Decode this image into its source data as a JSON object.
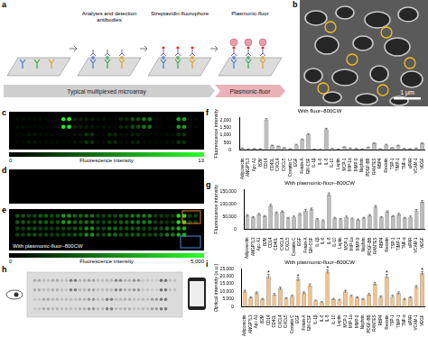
{
  "panel_labels": [
    "a",
    "b",
    "c",
    "d",
    "e",
    "f",
    "g",
    "h",
    "i"
  ],
  "schematic": {
    "steps": [
      "Analytes and detection antibodies",
      "Streptavidin-fluorophore",
      "Plasmonic-fluor"
    ],
    "stages": [
      "Typical multiplexed microarray",
      "Plasmonic-fluor"
    ]
  },
  "sem": {
    "scale_bar": "1 μm"
  },
  "array_c": {
    "colorbar": {
      "label": "Fluorescence intensity",
      "range": [
        0,
        13
      ],
      "ticks": [
        0,
        13
      ]
    }
  },
  "array_e": {
    "text": "With plasmonic-fluor–800CW",
    "colorbar": {
      "label": "Fluorescence intensity",
      "range": [
        0,
        5000
      ],
      "ticks": [
        0,
        {
          "value": 5000,
          "label": "5,000"
        }
      ]
    }
  },
  "chart_data": [
    {
      "type": "bar",
      "title": "With fluor–800CW",
      "y_label": "Fluorescence intensity",
      "categories": [
        "Adiponectin",
        "ANGPTL3",
        "Apo A1",
        "B2M",
        "CD14",
        "CD40L",
        "CXCL4",
        "CXCL5",
        "Cystatin C",
        "EGF",
        "Fetuin-A",
        "GM-CSF",
        "IL-1β",
        "IL-6",
        "IL-8",
        "IL-10",
        "Leptin",
        "MCP-1",
        "MIP-1α",
        "MMP-9",
        "Nephrin",
        "PDGF-BB",
        "RANTES",
        "RBP4",
        "Resistin",
        "TSP-1",
        "TIMP-1",
        "TNF-α",
        "uPAR",
        "VCAM-1",
        "VEGF"
      ],
      "values": [
        120,
        60,
        90,
        80,
        2050,
        300,
        250,
        150,
        80,
        350,
        700,
        1050,
        60,
        40,
        1400,
        100,
        60,
        200,
        120,
        90,
        70,
        180,
        450,
        80,
        350,
        150,
        300,
        100,
        80,
        120,
        450
      ],
      "errors": [
        15,
        10,
        12,
        10,
        60,
        25,
        20,
        15,
        10,
        30,
        40,
        50,
        10,
        8,
        60,
        12,
        10,
        20,
        15,
        12,
        10,
        18,
        30,
        10,
        30,
        15,
        25,
        12,
        10,
        15,
        30
      ],
      "color": "#bdbdbd",
      "ylim": [
        0,
        2200
      ],
      "yticks": [
        0,
        500,
        {
          "value": 1000,
          "label": "1,000"
        },
        {
          "value": 1500,
          "label": "1,500"
        },
        {
          "value": 2000,
          "label": "2,000"
        }
      ],
      "grid": false
    },
    {
      "type": "bar",
      "title": "With plasmonic-fluor–800CW",
      "y_label": "Fluorescence intensity",
      "categories": [
        "Adiponectin",
        "ANGPTL3",
        "Apo A1",
        "B2M",
        "CD14",
        "CD40L",
        "CXCL4",
        "CXCL5",
        "Cystatin C",
        "EGF",
        "Fetuin-A",
        "GM-CSF",
        "IL-1β",
        "IL-6",
        "IL-8",
        "IL-10",
        "Leptin",
        "MCP-1",
        "MIP-1α",
        "MMP-9",
        "Nephrin",
        "PDGF-BB",
        "RANTES",
        "RBP4",
        "Resistin",
        "TSP-1",
        "TIMP-1",
        "TNF-α",
        "uPAR",
        "VCAM-1",
        "VEGF"
      ],
      "values": [
        55000,
        48000,
        60000,
        52000,
        95000,
        65000,
        70000,
        45000,
        50000,
        60000,
        75000,
        80000,
        40000,
        35000,
        140000,
        45000,
        40000,
        50000,
        42000,
        38000,
        45000,
        55000,
        90000,
        48000,
        70000,
        52000,
        60000,
        45000,
        50000,
        75000,
        110000
      ],
      "errors": [
        4000,
        3000,
        4000,
        3000,
        5000,
        4000,
        4000,
        3000,
        3000,
        4000,
        5000,
        5000,
        3000,
        3000,
        6000,
        3000,
        3000,
        3000,
        3000,
        3000,
        3000,
        4000,
        5000,
        3000,
        4000,
        3000,
        4000,
        3000,
        3000,
        4000,
        5000
      ],
      "color": "#bdbdbd",
      "ylim": [
        0,
        160000
      ],
      "yticks": [
        0,
        {
          "value": 50000,
          "label": "50,000"
        },
        {
          "value": 100000,
          "label": "100,000"
        },
        {
          "value": 150000,
          "label": "150,000"
        }
      ],
      "grid": false
    },
    {
      "type": "bar",
      "title": "With plasmonic-fluor–800CW",
      "y_label": "Optical intensity (a.u.)",
      "categories": [
        "Adiponectin",
        "ANGPTL3",
        "Apo A1",
        "B2M",
        "CD14",
        "CD40L",
        "CXCL4",
        "CXCL5",
        "Cystatin C",
        "EGF",
        "Fetuin-A",
        "GM-CSF",
        "IL-1β",
        "IL-6",
        "IL-8",
        "IL-10",
        "Leptin",
        "MCP-1",
        "MIP-1α",
        "MMP-9",
        "Nephrin",
        "PDGF-BB",
        "RANTES",
        "RBP4",
        "Resistin",
        "TSP-1",
        "TIMP-1",
        "TNF-α",
        "uPAR",
        "VCAM-1",
        "VEGF"
      ],
      "values": [
        10000,
        6000,
        9000,
        5000,
        20000,
        8000,
        12000,
        5500,
        7000,
        18000,
        9000,
        14000,
        4000,
        3000,
        23000,
        5000,
        4500,
        10000,
        7000,
        6000,
        5000,
        8000,
        15000,
        6500,
        20000,
        7000,
        9000,
        5000,
        6000,
        13000,
        22000
      ],
      "errors": [
        800,
        600,
        800,
        500,
        1200,
        700,
        900,
        500,
        600,
        1100,
        800,
        1000,
        400,
        400,
        1200,
        500,
        400,
        800,
        600,
        500,
        500,
        700,
        1000,
        600,
        1200,
        600,
        800,
        500,
        500,
        900,
        1200
      ],
      "annotations": [
        {
          "category": "CD14",
          "text": "*"
        },
        {
          "category": "EGF",
          "text": "*"
        },
        {
          "category": "IL-8",
          "text": "*"
        },
        {
          "category": "Resistin",
          "text": "*"
        },
        {
          "category": "VEGF",
          "text": "*"
        }
      ],
      "color": "#f2c28c",
      "ylim": [
        0,
        25000
      ],
      "yticks": [
        0,
        {
          "value": 5000,
          "label": "5,000"
        },
        {
          "value": 10000,
          "label": "10,000"
        },
        {
          "value": 15000,
          "label": "15,000"
        },
        {
          "value": 20000,
          "label": "20,000"
        },
        {
          "value": 25000,
          "label": "25,000"
        }
      ],
      "grid": false
    }
  ]
}
